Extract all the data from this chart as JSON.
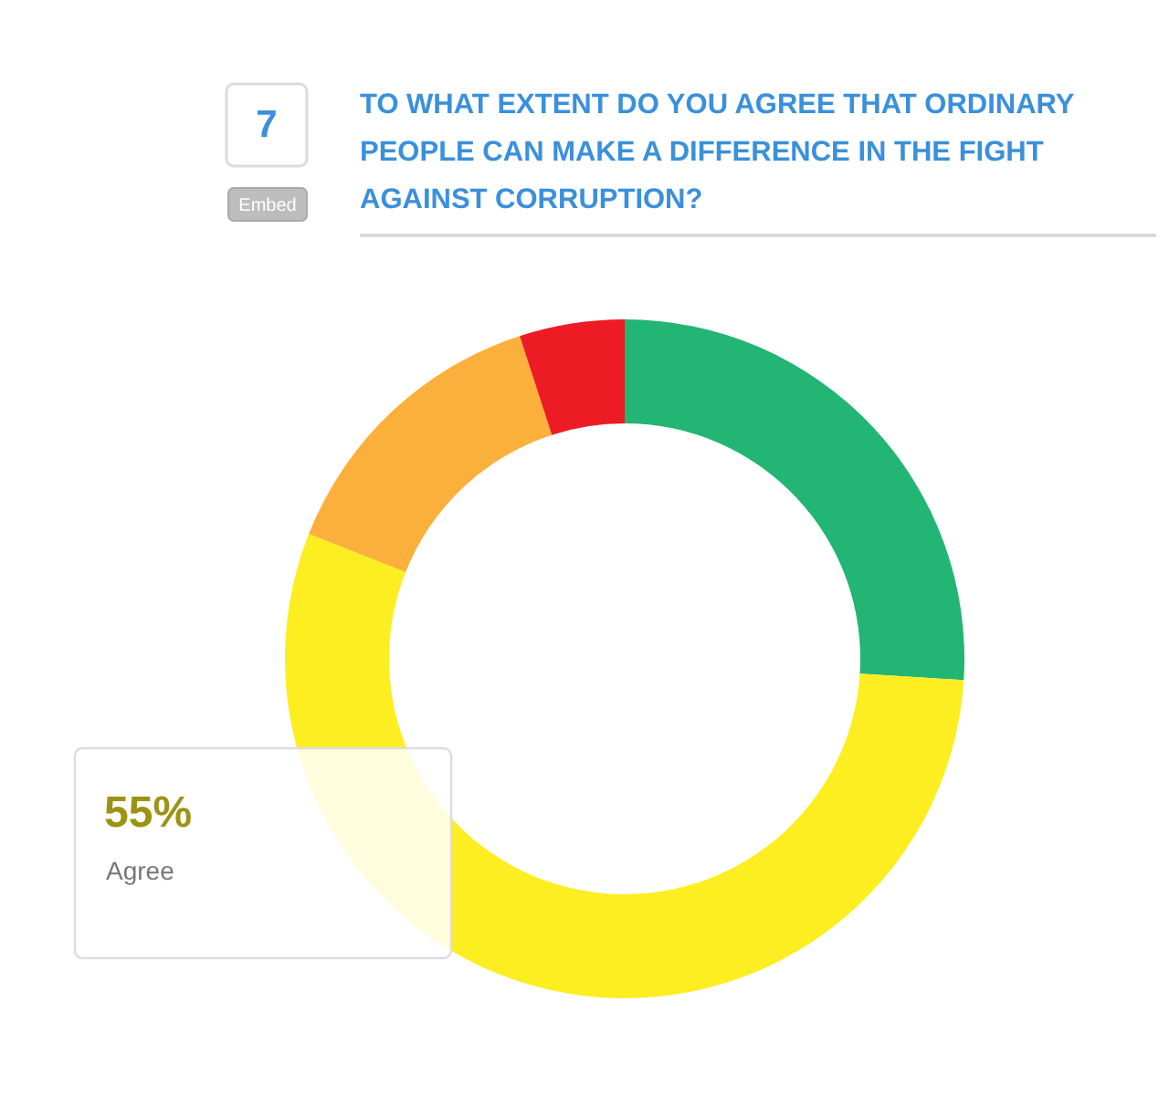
{
  "chart_data": {
    "type": "donut",
    "title": "TO WHAT EXTENT DO YOU AGREE THAT ORDINARY PEOPLE CAN MAKE A DIFFERENCE IN THE FIGHT AGAINST CORRUPTION?",
    "categories": [
      null,
      "Agree",
      null,
      null
    ],
    "values": [
      26,
      55,
      14,
      5
    ],
    "colors": [
      "#22b573",
      "#fcee21",
      "#fbb03b",
      "#ed1c24"
    ],
    "value_labels": [
      null,
      "55%",
      null,
      null
    ],
    "annotations": [
      "7",
      "Embed"
    ]
  }
}
